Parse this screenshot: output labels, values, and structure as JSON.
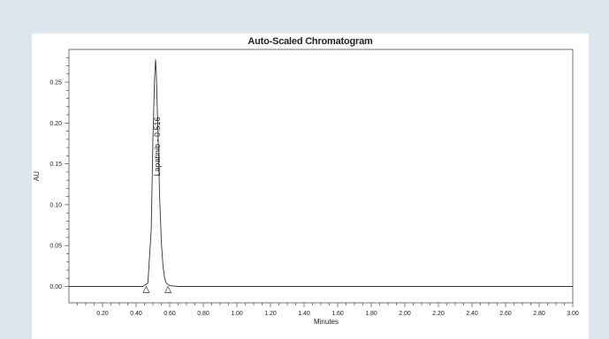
{
  "chart_data": {
    "type": "line",
    "title": "Auto-Scaled Chromatogram",
    "xlabel": "Minutes",
    "ylabel": "AU",
    "xlim": [
      0.0,
      3.0
    ],
    "ylim": [
      -0.02,
      0.29
    ],
    "x_ticks": [
      "0.20",
      "0.40",
      "0.60",
      "0.80",
      "1.00",
      "1.20",
      "1.40",
      "1.60",
      "1.80",
      "2.00",
      "2.20",
      "2.40",
      "2.60",
      "2.80",
      "3.00"
    ],
    "y_ticks": [
      "0.00",
      "0.05",
      "0.10",
      "0.15",
      "0.20",
      "0.25"
    ],
    "series": [
      {
        "x": [
          0.0,
          0.3,
          0.44,
          0.47,
          0.49,
          0.5,
          0.51,
          0.516,
          0.52,
          0.53,
          0.54,
          0.55,
          0.56,
          0.57,
          0.58,
          0.6,
          0.65,
          0.8,
          1.5,
          2.2,
          3.0
        ],
        "y": [
          0.0,
          0.0,
          0.0,
          0.004,
          0.07,
          0.18,
          0.255,
          0.278,
          0.262,
          0.19,
          0.11,
          0.055,
          0.025,
          0.01,
          0.004,
          0.001,
          0.0,
          0.0,
          0.0,
          0.0,
          0.0
        ]
      }
    ],
    "annotations": [
      {
        "text": "Lapatinib - 0.516",
        "x": 0.516
      }
    ],
    "integration_markers": [
      0.46,
      0.59
    ]
  }
}
